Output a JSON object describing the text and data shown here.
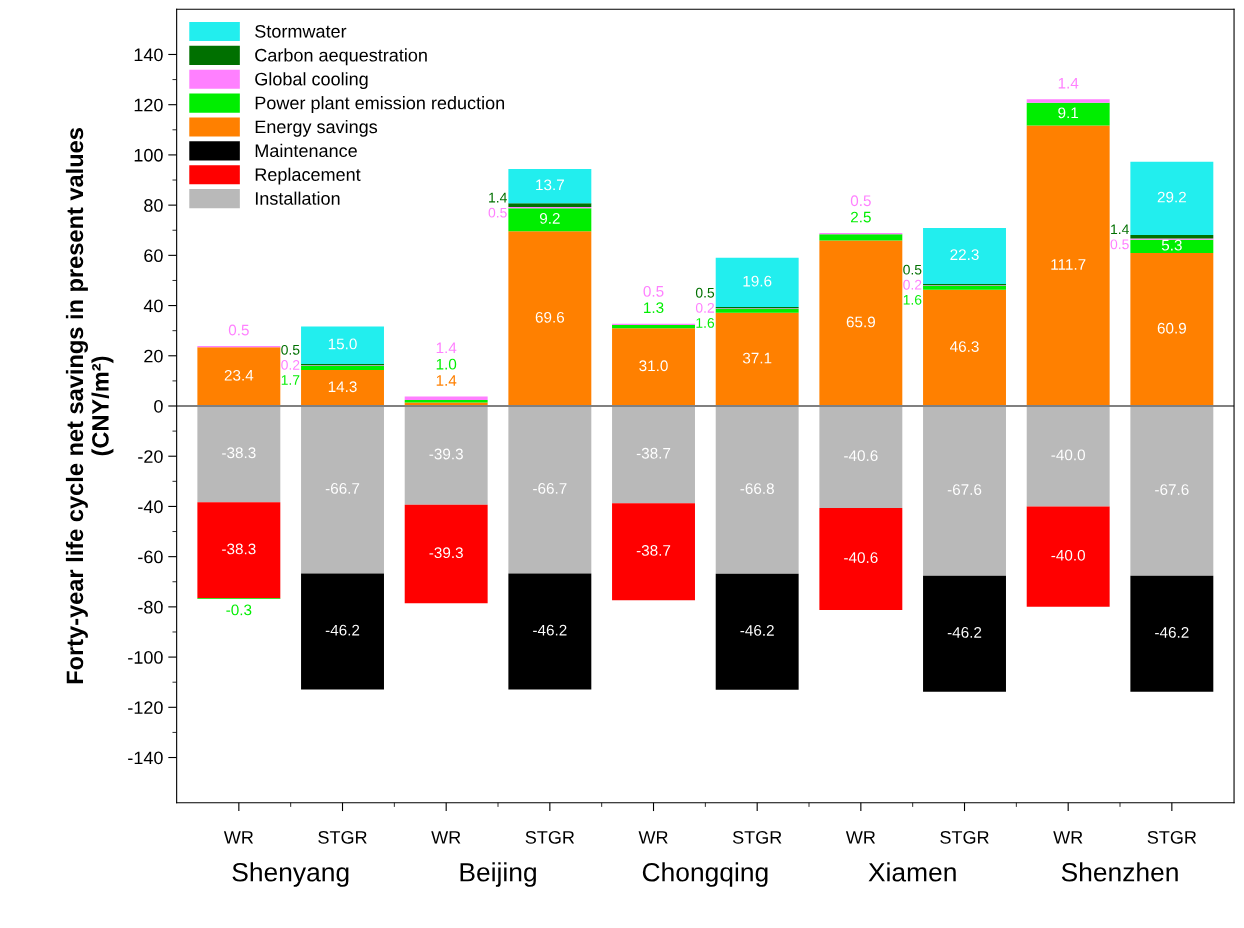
{
  "chart_data": {
    "type": "bar",
    "stacked": true,
    "ylabel": "Forty-year life cycle net savings in present values\n(CNY/m²)",
    "categories": [
      "WR",
      "STGR",
      "WR",
      "STGR",
      "WR",
      "STGR",
      "WR",
      "STGR",
      "WR",
      "STGR"
    ],
    "annotations": [
      "Shenyang",
      "Beijing",
      "Chongqing",
      "Xiamen",
      "Shenzhen"
    ],
    "series": [
      {
        "name": "Installation",
        "color": "#b9b9b9",
        "values": [
          -38.3,
          -66.7,
          -39.3,
          -66.7,
          -38.7,
          -66.8,
          -40.6,
          -67.6,
          -40.0,
          -67.6
        ],
        "value_labels": [
          "-38.3",
          "-66.7",
          "-39.3",
          "-66.7",
          "-38.7",
          "-66.8",
          "-40.6",
          "-67.6",
          "-40.0",
          "-67.6"
        ]
      },
      {
        "name": "Replacement",
        "color": "#ff0000",
        "values": [
          -38.3,
          null,
          -39.3,
          null,
          -38.7,
          null,
          -40.6,
          null,
          -40.0,
          null
        ],
        "value_labels": [
          "-38.3",
          null,
          "-39.3",
          null,
          "-38.7",
          null,
          "-40.6",
          null,
          "-40.0",
          null
        ]
      },
      {
        "name": "Maintenance",
        "color": "#000000",
        "values": [
          null,
          -46.2,
          null,
          -46.2,
          null,
          -46.2,
          null,
          -46.2,
          null,
          -46.2
        ],
        "value_labels": [
          null,
          "-46.2",
          null,
          "-46.2",
          null,
          "-46.2",
          null,
          "-46.2",
          null,
          "-46.2"
        ]
      },
      {
        "name": "Energy savings",
        "color": "#ff8000",
        "values": [
          23.4,
          14.3,
          1.4,
          69.6,
          31.0,
          37.1,
          65.9,
          46.3,
          111.7,
          60.9
        ],
        "value_labels": [
          "23.4",
          "14.3",
          "1.4",
          "69.6",
          "31.0",
          "37.1",
          "65.9",
          "46.3",
          "111.7",
          "60.9"
        ]
      },
      {
        "name": "Power plant emission reduction",
        "color": "#00ee00",
        "values": [
          -0.3,
          1.7,
          1.0,
          9.2,
          1.3,
          1.6,
          2.5,
          1.6,
          9.1,
          5.3
        ],
        "value_labels": [
          "-0.3",
          "1.7",
          "1.0",
          "9.2",
          "1.3",
          "1.6",
          "2.5",
          "1.6",
          "9.1",
          "5.3"
        ]
      },
      {
        "name": "Global cooling",
        "color": "#ff80ff",
        "values": [
          0.5,
          0.2,
          1.4,
          0.5,
          0.5,
          0.2,
          0.5,
          0.2,
          1.4,
          0.5
        ],
        "value_labels": [
          "0.5",
          "0.2",
          "1.4",
          "0.5",
          "0.5",
          "0.2",
          "0.5",
          "0.2",
          "1.4",
          "0.5"
        ]
      },
      {
        "name": "Carbon aequestration",
        "color": "#007000",
        "values": [
          null,
          0.5,
          null,
          1.4,
          null,
          0.5,
          null,
          0.5,
          null,
          1.4
        ],
        "value_labels": [
          null,
          "0.5",
          null,
          "1.4",
          null,
          "0.5",
          null,
          "0.5",
          null,
          "1.4"
        ]
      },
      {
        "name": "Stormwater",
        "color": "#22eeee",
        "values": [
          null,
          15.0,
          null,
          13.7,
          null,
          19.6,
          null,
          22.3,
          null,
          29.2
        ],
        "value_labels": [
          null,
          "15.0",
          null,
          "13.7",
          null,
          "19.6",
          null,
          "22.3",
          null,
          "29.2"
        ]
      }
    ],
    "ylim": [
      -158,
      158
    ],
    "yticks": [
      -140,
      -120,
      -100,
      -80,
      -60,
      -40,
      -20,
      0,
      20,
      40,
      60,
      80,
      100,
      120,
      140
    ],
    "ref_lines": [
      {
        "axis": "y",
        "value": 0,
        "color": "#808080"
      }
    ],
    "legend": "top left",
    "grid": false
  }
}
